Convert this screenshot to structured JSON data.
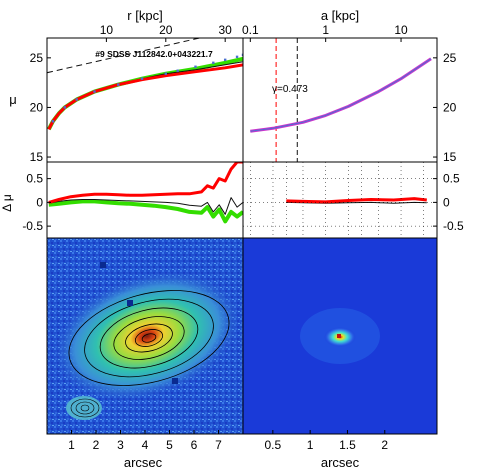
{
  "title_label": "#9 SDSS J112842.0+043221.7",
  "gamma_label": "γ=0.473",
  "left_top_axis_label": "r [kpc]",
  "right_top_axis_label": "a [kpc]",
  "left_bottom_axis_label": "arcsec",
  "right_bottom_axis_label": "arcsec",
  "mu_label": "μ",
  "dmu_label": "Δ μ",
  "colors": {
    "green": "#33dd00",
    "red": "#ff0000",
    "magenta": "#cc33cc",
    "blue": "#4a6fd0",
    "dark": "#111111"
  },
  "chart_data": [
    {
      "type": "line",
      "panel": "surface-brightness-profile-left",
      "title": "#9 SDSS J112842.0+043221.7",
      "xlabel": "r [kpc]",
      "ylabel": "μ",
      "xlim": [
        0,
        33
      ],
      "ylim": [
        27,
        14.5
      ],
      "x_ticks": [
        10,
        20,
        30
      ],
      "y_ticks": [
        15,
        20,
        25
      ],
      "series": [
        {
          "name": "",
          "color": "green",
          "x": [
            0.3,
            1,
            2,
            3,
            5,
            8,
            12,
            16,
            20,
            25,
            30,
            33
          ],
          "y": [
            17.8,
            18.6,
            19.4,
            20.0,
            20.8,
            21.6,
            22.3,
            22.9,
            23.4,
            23.9,
            24.5,
            24.9
          ]
        },
        {
          "name": "",
          "color": "dark",
          "x": [
            0.3,
            1,
            2,
            3,
            5,
            8,
            12,
            16,
            20,
            25,
            30,
            33
          ],
          "y": [
            17.8,
            18.6,
            19.4,
            20.0,
            20.8,
            21.6,
            22.3,
            22.9,
            23.4,
            23.8,
            24.3,
            24.6
          ]
        },
        {
          "name": "",
          "color": "red",
          "x": [
            0.3,
            1,
            2,
            3,
            5,
            8,
            12,
            16,
            20,
            25,
            30,
            33
          ],
          "y": [
            17.8,
            18.6,
            19.4,
            20.0,
            20.8,
            21.6,
            22.3,
            22.8,
            23.2,
            23.6,
            24.0,
            24.3
          ]
        },
        {
          "name": "",
          "color": "blue",
          "style": "points",
          "x": [
            1,
            3,
            5,
            8,
            12,
            16,
            20,
            22,
            25,
            28,
            30,
            32,
            33
          ],
          "y": [
            18.6,
            20.0,
            20.8,
            21.6,
            22.3,
            22.9,
            23.4,
            23.7,
            24.1,
            24.5,
            24.8,
            25.1,
            25.3
          ]
        },
        {
          "name": "",
          "color": "dark",
          "style": "dashed",
          "x": [
            0,
            33
          ],
          "y": [
            23.5,
            28.0
          ]
        }
      ]
    },
    {
      "type": "line",
      "panel": "surface-brightness-profile-right",
      "xlabel": "a [kpc]",
      "ylabel": "μ",
      "x_scale": "log",
      "xlim": [
        0.08,
        30
      ],
      "ylim": [
        27,
        14.5
      ],
      "x_ticks": [
        0.1,
        1,
        10
      ],
      "y_ticks": [
        15,
        20,
        25
      ],
      "vertical_lines": [
        {
          "x": 0.22,
          "color": "red"
        },
        {
          "x": 0.42,
          "color": "dark"
        }
      ],
      "series": [
        {
          "name": "",
          "color": "magenta",
          "x": [
            0.1,
            0.2,
            0.5,
            1,
            2,
            5,
            10,
            25
          ],
          "y": [
            17.6,
            17.9,
            18.5,
            19.2,
            20.1,
            21.6,
            22.9,
            24.9
          ]
        },
        {
          "name": "",
          "color": "blue",
          "x": [
            0.1,
            0.2,
            0.5,
            1,
            2,
            5,
            10,
            25
          ],
          "y": [
            17.6,
            17.9,
            18.5,
            19.2,
            20.1,
            21.6,
            22.9,
            24.9
          ]
        }
      ]
    },
    {
      "type": "line",
      "panel": "residual-left",
      "ylabel": "Δ μ",
      "xlim": [
        0,
        33
      ],
      "ylim": [
        0.85,
        -0.75
      ],
      "y_ticks": [
        -0.5,
        0,
        0.5
      ],
      "series": [
        {
          "name": "",
          "color": "green",
          "x": [
            0.3,
            2,
            4,
            6,
            8,
            10,
            12,
            14,
            16,
            18,
            20,
            22,
            24,
            26,
            27,
            28,
            29,
            30,
            31,
            32,
            33
          ],
          "y": [
            -0.05,
            -0.03,
            0.0,
            0.02,
            0.02,
            0.0,
            -0.02,
            -0.03,
            -0.05,
            -0.07,
            -0.1,
            -0.14,
            -0.2,
            -0.22,
            -0.1,
            -0.3,
            -0.15,
            -0.4,
            -0.2,
            -0.3,
            -0.2
          ]
        },
        {
          "name": "",
          "color": "dark",
          "x": [
            0.3,
            2,
            4,
            6,
            8,
            10,
            12,
            14,
            16,
            18,
            20,
            22,
            24,
            26,
            27,
            28,
            29,
            30,
            31,
            32,
            33
          ],
          "y": [
            -0.02,
            0.02,
            0.05,
            0.06,
            0.06,
            0.05,
            0.04,
            0.03,
            0.02,
            0.01,
            0.0,
            -0.02,
            -0.06,
            -0.08,
            0.0,
            -0.2,
            -0.05,
            -0.25,
            0.1,
            -0.1,
            0.0
          ]
        },
        {
          "name": "",
          "color": "red",
          "x": [
            0.3,
            2,
            4,
            6,
            8,
            10,
            12,
            14,
            16,
            18,
            20,
            22,
            24,
            26,
            27,
            28,
            29,
            30,
            31,
            32,
            33
          ],
          "y": [
            0.0,
            0.06,
            0.12,
            0.15,
            0.17,
            0.17,
            0.16,
            0.15,
            0.15,
            0.16,
            0.17,
            0.18,
            0.18,
            0.22,
            0.35,
            0.3,
            0.5,
            0.45,
            0.7,
            0.85,
            0.85
          ]
        }
      ]
    },
    {
      "type": "line",
      "panel": "residual-right",
      "ylabel": "Δ μ",
      "x_scale": "log",
      "xlim": [
        0.08,
        30
      ],
      "ylim": [
        0.85,
        -0.75
      ],
      "y_ticks": [
        -0.5,
        0,
        0.5
      ],
      "series": [
        {
          "name": "",
          "color": "dark",
          "x": [
            0.3,
            0.5,
            1,
            2,
            4,
            8,
            15,
            22
          ],
          "y": [
            0.0,
            -0.01,
            -0.02,
            -0.01,
            0.0,
            -0.02,
            0.0,
            -0.01
          ]
        },
        {
          "name": "",
          "color": "red",
          "x": [
            0.3,
            0.5,
            1,
            2,
            4,
            8,
            15,
            22
          ],
          "y": [
            0.03,
            0.02,
            0.01,
            0.04,
            0.06,
            0.05,
            0.08,
            0.05
          ]
        }
      ]
    },
    {
      "type": "heatmap",
      "panel": "galaxy-image-left",
      "xlabel": "arcsec",
      "xlim": [
        0,
        8
      ],
      "x_ticks": [
        1,
        2,
        3,
        4,
        5,
        6,
        7
      ]
    },
    {
      "type": "heatmap",
      "panel": "galaxy-image-right",
      "xlabel": "arcsec",
      "xlim": [
        0.1,
        2.7
      ],
      "x_ticks": [
        0.5,
        1,
        1.5,
        2
      ]
    }
  ]
}
